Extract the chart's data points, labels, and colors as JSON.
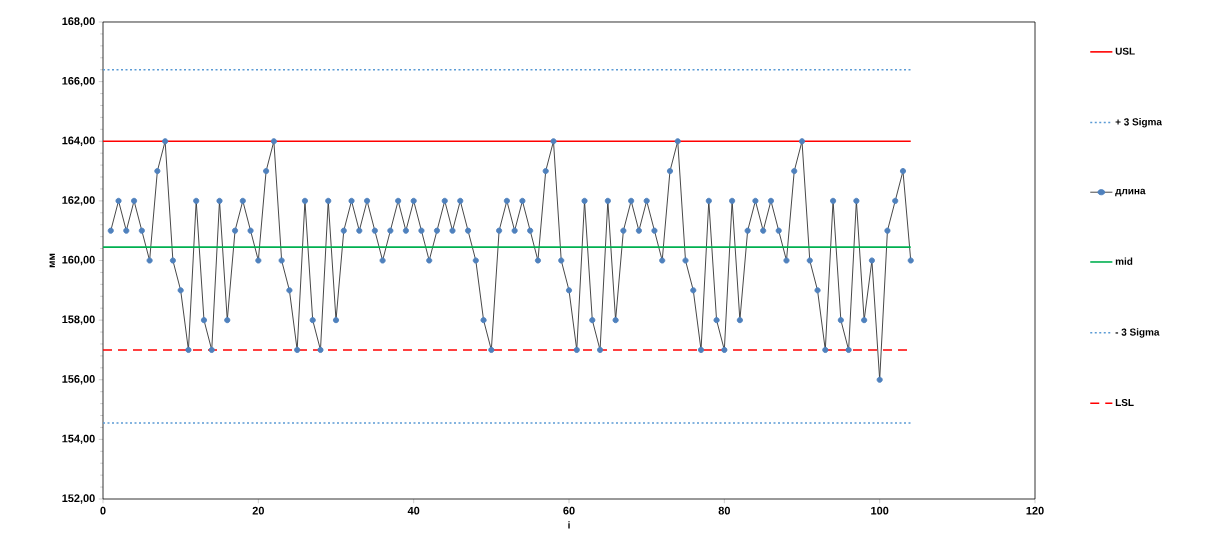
{
  "chart_data": {
    "type": "line",
    "xlabel": "i",
    "ylabel": "мм",
    "x": [
      1,
      2,
      3,
      4,
      5,
      6,
      7,
      8,
      9,
      10,
      11,
      12,
      13,
      14,
      15,
      16,
      17,
      18,
      19,
      20,
      21,
      22,
      23,
      24,
      25,
      26,
      27,
      28,
      29,
      30,
      31,
      32,
      33,
      34,
      35,
      36,
      37,
      38,
      39,
      40,
      41,
      42,
      43,
      44,
      45,
      46,
      47,
      48,
      49,
      50,
      51,
      52,
      53,
      54,
      55,
      56,
      57,
      58,
      59,
      60,
      61,
      62,
      63,
      64,
      65,
      66,
      67,
      68,
      69,
      70,
      71,
      72,
      73,
      74,
      75,
      76,
      77,
      78,
      79,
      80,
      81,
      82,
      83,
      84,
      85,
      86,
      87,
      88,
      89,
      90,
      91,
      92,
      93,
      94,
      95,
      96,
      97,
      98,
      99,
      100,
      101,
      102,
      103,
      104
    ],
    "series": [
      {
        "name": "длина",
        "color": "#4f81bd",
        "values": [
          161,
          162,
          161,
          162,
          161,
          160,
          163,
          164,
          160,
          159,
          157,
          162,
          158,
          157,
          162,
          158,
          161,
          162,
          161,
          160,
          163,
          164,
          160,
          159,
          157,
          162,
          158,
          157,
          162,
          158,
          161,
          162,
          161,
          162,
          161,
          160,
          161,
          162,
          161,
          162,
          161,
          160,
          161,
          162,
          161,
          162,
          161,
          160,
          158,
          157,
          161,
          162,
          161,
          162,
          161,
          160,
          163,
          164,
          160,
          159,
          157,
          162,
          158,
          157,
          162,
          158,
          161,
          162,
          161,
          162,
          161,
          160,
          163,
          164,
          160,
          159,
          157,
          162,
          158,
          157,
          162,
          158,
          161,
          162,
          161,
          162,
          161,
          160,
          163,
          164,
          160,
          159,
          157,
          162,
          158,
          157,
          162,
          158,
          160,
          156,
          161,
          162,
          163,
          160
        ]
      }
    ],
    "ref_lines": [
      {
        "axis": "y",
        "value": 164,
        "label": "USL",
        "color": "#ff0000",
        "line_style": "solid"
      },
      {
        "axis": "y",
        "value": 166.4,
        "label": "+ 3 Sigma",
        "color": "#5b9bd5",
        "line_style": "dotted"
      },
      {
        "axis": "y",
        "value": 160.45,
        "label": "mid",
        "color": "#00b050",
        "line_style": "solid"
      },
      {
        "axis": "y",
        "value": 154.55,
        "label": "- 3 Sigma",
        "color": "#5b9bd5",
        "line_style": "dotted"
      },
      {
        "axis": "y",
        "value": 157,
        "label": "LSL",
        "color": "#ff0000",
        "line_style": "dashed"
      }
    ],
    "xlim": [
      0,
      120
    ],
    "xticks": [
      0,
      20,
      40,
      60,
      80,
      100,
      120
    ],
    "ylim": [
      152,
      168
    ],
    "yticks": [
      {
        "value": 152,
        "label": "152,00"
      },
      {
        "value": 154,
        "label": "154,00"
      },
      {
        "value": 156,
        "label": "156,00"
      },
      {
        "value": 158,
        "label": "158,00"
      },
      {
        "value": 160,
        "label": "160,00"
      },
      {
        "value": 162,
        "label": "162,00"
      },
      {
        "value": 164,
        "label": "164,00"
      },
      {
        "value": 166,
        "label": "166,00"
      },
      {
        "value": 168,
        "label": "168,00"
      }
    ],
    "grid": false,
    "legend": "right",
    "marker": "circle",
    "line_style": "solid"
  }
}
